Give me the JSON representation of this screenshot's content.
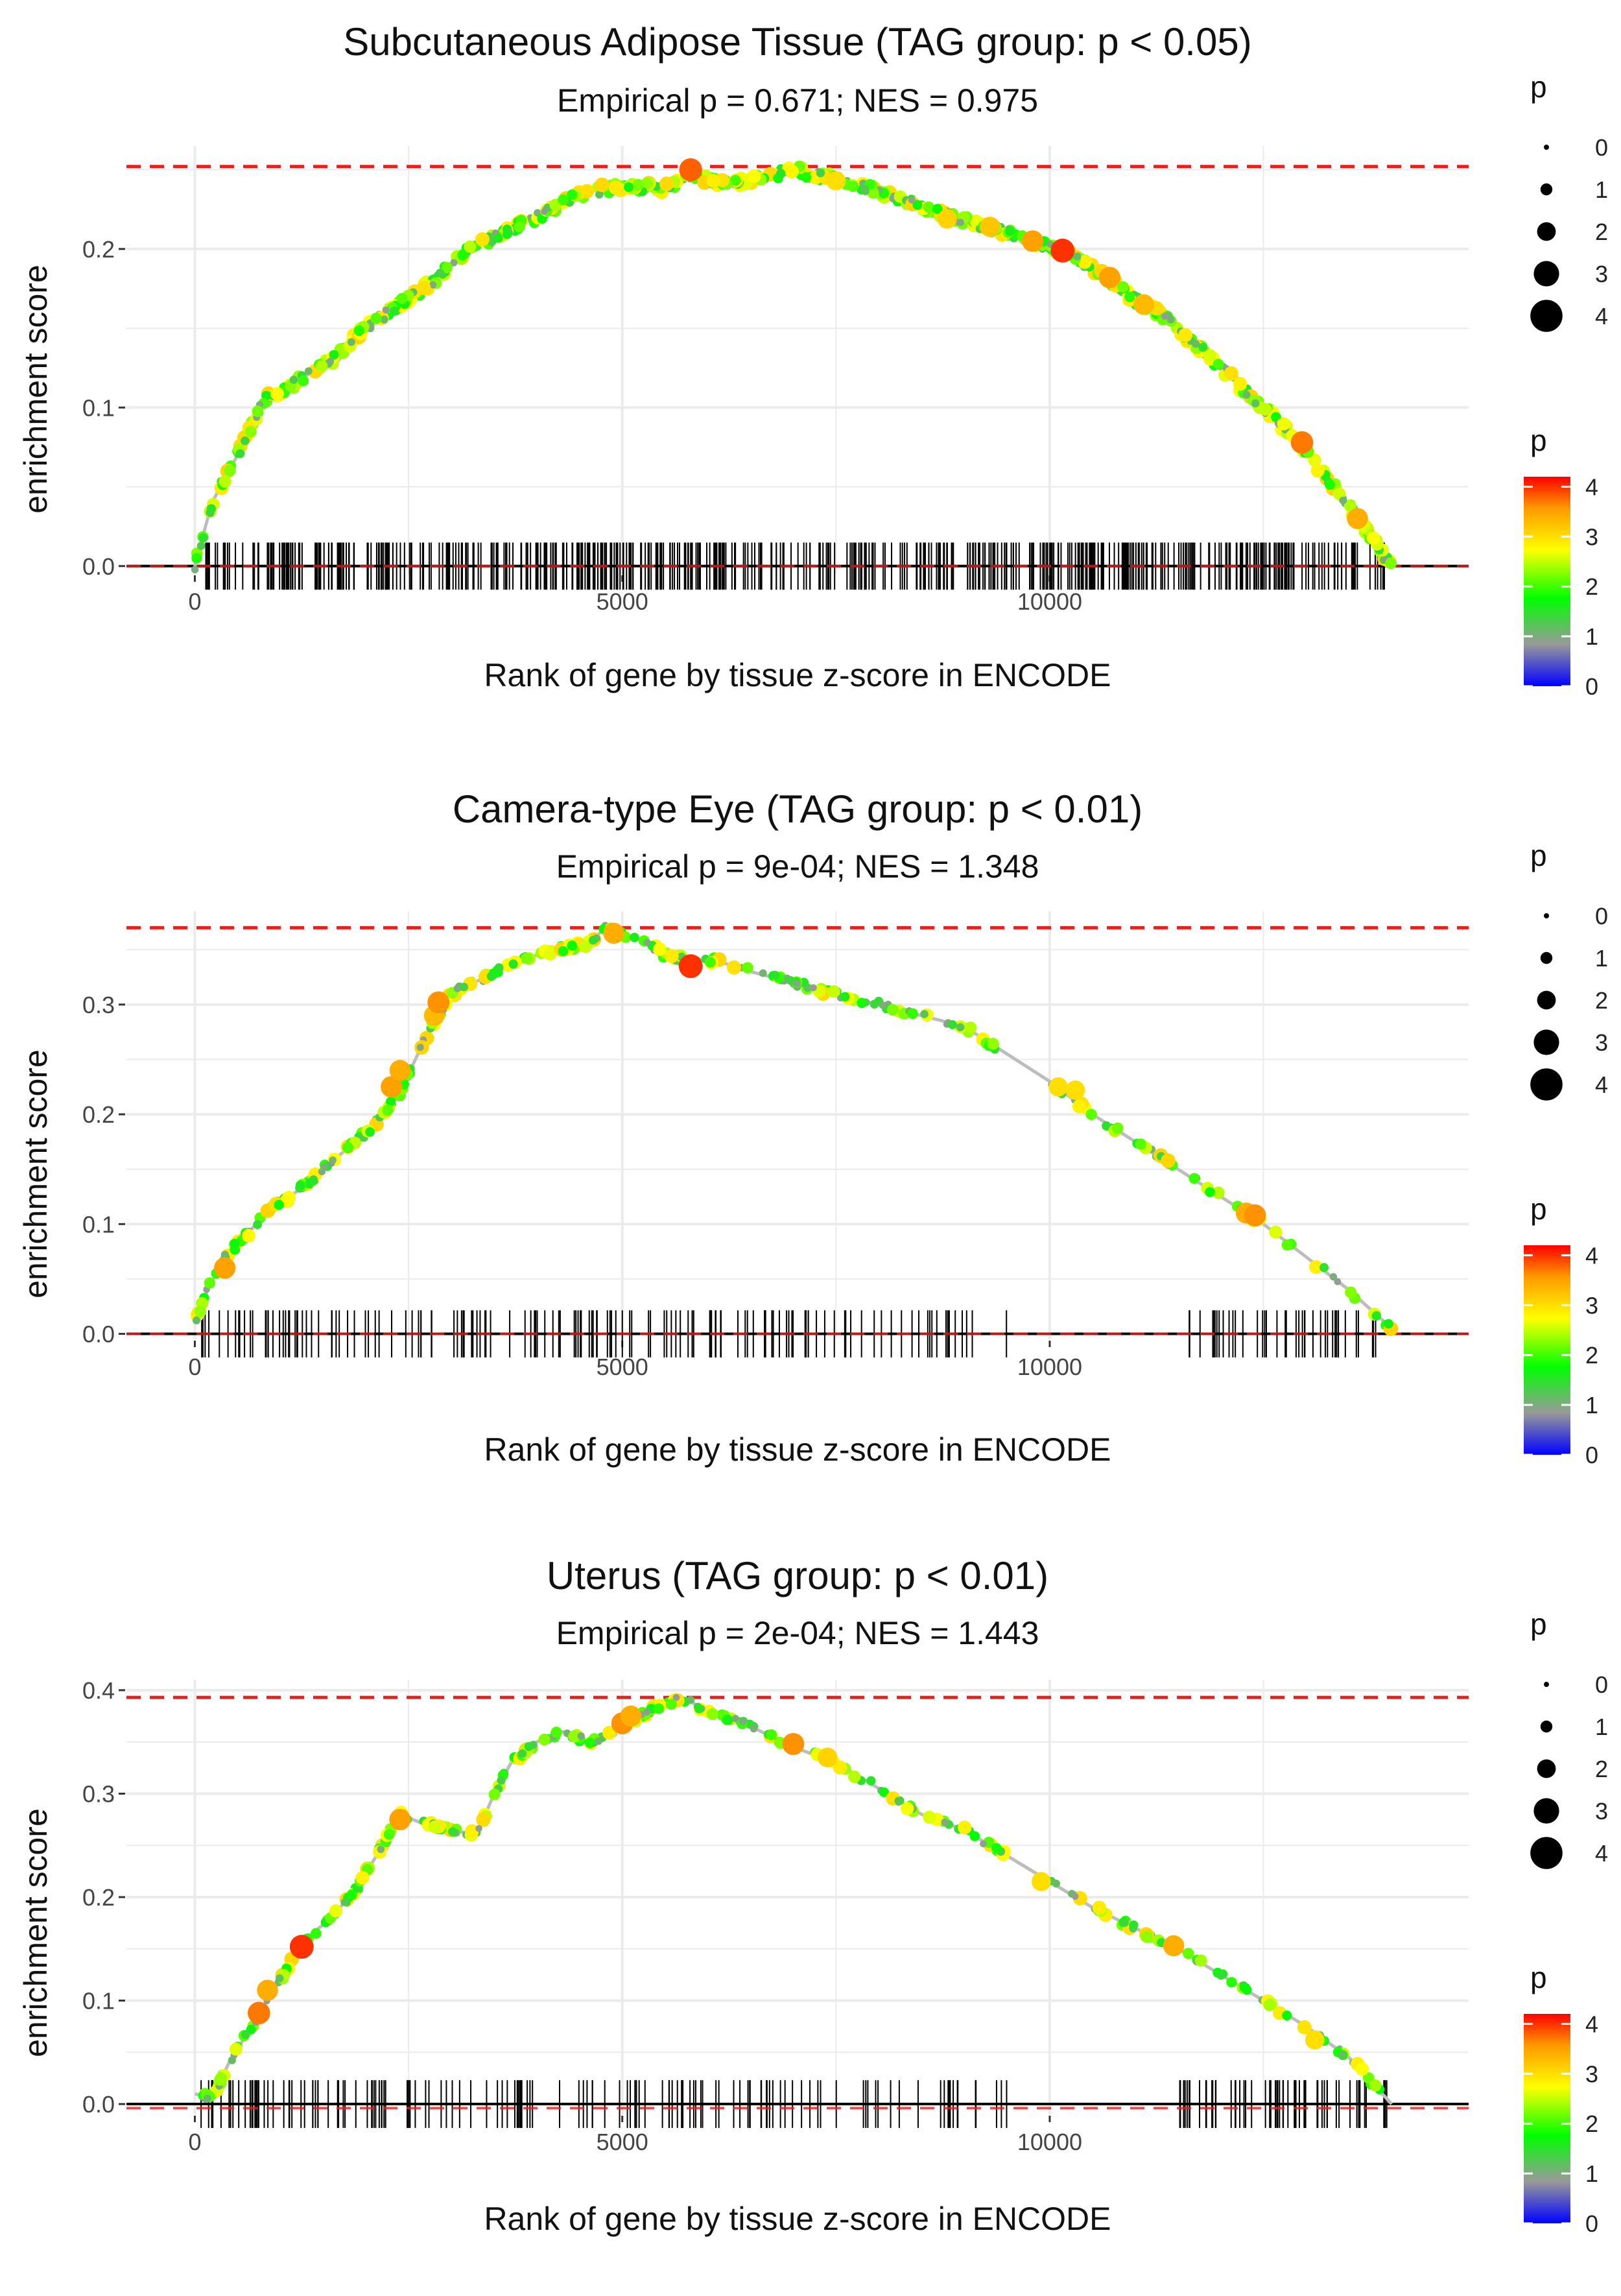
{
  "chart_data": [
    {
      "type": "line",
      "title": "Subcutaneous Adipose Tissue (TAG group: p < 0.05)",
      "subtitle": "Empirical p = 0.671; NES = 0.975",
      "xlabel": "Rank of gene by tissue z-score in ENCODE",
      "ylabel": "enrichment score",
      "xlim": [
        -800,
        14900
      ],
      "ylim": [
        -0.005,
        0.265
      ],
      "x_ticks": [
        0,
        5000,
        10000
      ],
      "x_tick_labels": [
        "0",
        "5000",
        "10000"
      ],
      "y_ticks": [
        0.0,
        0.1,
        0.2
      ],
      "y_tick_labels": [
        "0.0",
        "0.1",
        "0.2"
      ],
      "max_es_line": 0.252,
      "min_es_line": 0.0,
      "curve": {
        "x": [
          0,
          200,
          400,
          600,
          800,
          1000,
          1300,
          1600,
          2000,
          2400,
          2800,
          3200,
          3600,
          4000,
          4500,
          5000,
          5500,
          5800,
          6200,
          6600,
          7000,
          7400,
          7800,
          8200,
          8600,
          9000,
          9400,
          9800,
          10200,
          10600,
          11000,
          11400,
          11800,
          12200,
          12600,
          13000,
          13400,
          13800,
          14000
        ],
        "y": [
          0.0,
          0.04,
          0.06,
          0.08,
          0.105,
          0.11,
          0.12,
          0.13,
          0.15,
          0.165,
          0.18,
          0.2,
          0.21,
          0.22,
          0.235,
          0.24,
          0.238,
          0.245,
          0.242,
          0.244,
          0.25,
          0.245,
          0.24,
          0.232,
          0.225,
          0.218,
          0.212,
          0.205,
          0.198,
          0.185,
          0.168,
          0.155,
          0.135,
          0.115,
          0.095,
          0.072,
          0.045,
          0.015,
          0.0
        ]
      },
      "highlighted_points": [
        {
          "x": 5800,
          "y": 0.25,
          "p": 3.8
        },
        {
          "x": 7500,
          "y": 0.243,
          "p": 3.0
        },
        {
          "x": 8800,
          "y": 0.219,
          "p": 3.1
        },
        {
          "x": 9300,
          "y": 0.214,
          "p": 3.2
        },
        {
          "x": 9800,
          "y": 0.205,
          "p": 3.5
        },
        {
          "x": 10150,
          "y": 0.199,
          "p": 4.0
        },
        {
          "x": 10700,
          "y": 0.182,
          "p": 3.5
        },
        {
          "x": 11100,
          "y": 0.165,
          "p": 3.3
        },
        {
          "x": 12950,
          "y": 0.078,
          "p": 3.7
        },
        {
          "x": 13600,
          "y": 0.03,
          "p": 3.4
        }
      ],
      "gene_ticks": {
        "density": "dense",
        "start": 50,
        "end": 13950,
        "count": 520
      },
      "legend_size": {
        "title": "p",
        "levels": [
          "0",
          "1",
          "2",
          "3",
          "4"
        ]
      },
      "legend_color": {
        "title": "p",
        "labels": [
          "4",
          "3",
          "2",
          "1",
          "0"
        ],
        "range": [
          0,
          4.2
        ]
      }
    },
    {
      "type": "line",
      "title": "Camera-type Eye (TAG group: p < 0.01)",
      "subtitle": "Empirical p = 9e-04; NES = 1.348",
      "xlabel": "Rank of gene by tissue z-score in ENCODE",
      "ylabel": "enrichment score",
      "xlim": [
        -800,
        14900
      ],
      "ylim": [
        -0.005,
        0.385
      ],
      "x_ticks": [
        0,
        5000,
        10000
      ],
      "x_tick_labels": [
        "0",
        "5000",
        "10000"
      ],
      "y_ticks": [
        0.0,
        0.1,
        0.2,
        0.3
      ],
      "y_tick_labels": [
        "0.0",
        "0.1",
        "0.2",
        "0.3"
      ],
      "max_es_line": 0.37,
      "min_es_line": 0.0,
      "curve": {
        "x": [
          0,
          150,
          350,
          600,
          900,
          1200,
          1500,
          1800,
          2100,
          2400,
          2700,
          3000,
          3400,
          3800,
          4200,
          4600,
          4800,
          5200,
          5500,
          5800,
          6100,
          6500,
          7000,
          7500,
          8000,
          8500,
          9000,
          9500,
          10000,
          10500,
          11000,
          11500,
          12000,
          12500,
          13000,
          13500,
          14000
        ],
        "y": [
          0.01,
          0.04,
          0.07,
          0.09,
          0.115,
          0.13,
          0.15,
          0.17,
          0.19,
          0.22,
          0.27,
          0.31,
          0.325,
          0.34,
          0.35,
          0.355,
          0.37,
          0.36,
          0.345,
          0.34,
          0.34,
          0.33,
          0.32,
          0.31,
          0.3,
          0.29,
          0.28,
          0.255,
          0.23,
          0.2,
          0.175,
          0.15,
          0.125,
          0.1,
          0.07,
          0.04,
          0.005
        ]
      },
      "highlighted_points": [
        {
          "x": 350,
          "y": 0.06,
          "p": 3.5
        },
        {
          "x": 2300,
          "y": 0.225,
          "p": 3.5
        },
        {
          "x": 2400,
          "y": 0.24,
          "p": 3.4
        },
        {
          "x": 2800,
          "y": 0.29,
          "p": 3.3
        },
        {
          "x": 2850,
          "y": 0.302,
          "p": 3.6
        },
        {
          "x": 4900,
          "y": 0.365,
          "p": 3.4
        },
        {
          "x": 5800,
          "y": 0.335,
          "p": 4.0
        },
        {
          "x": 10100,
          "y": 0.225,
          "p": 3.0
        },
        {
          "x": 10300,
          "y": 0.222,
          "p": 3.0
        },
        {
          "x": 12300,
          "y": 0.11,
          "p": 3.4
        },
        {
          "x": 12400,
          "y": 0.108,
          "p": 3.6
        }
      ],
      "gene_ticks": {
        "density": "sparse",
        "start": 50,
        "end": 13950,
        "count": 190
      },
      "legend_size": {
        "title": "p",
        "levels": [
          "0",
          "1",
          "2",
          "3",
          "4"
        ]
      },
      "legend_color": {
        "title": "p",
        "labels": [
          "4",
          "3",
          "2",
          "1",
          "0"
        ],
        "range": [
          0,
          4.2
        ]
      }
    },
    {
      "type": "line",
      "title": "Uterus (TAG group: p < 0.01)",
      "subtitle": "Empirical p = 2e-04; NES = 1.443",
      "xlabel": "Rank of gene by tissue z-score in ENCODE",
      "ylabel": "enrichment score",
      "xlim": [
        -800,
        14900
      ],
      "ylim": [
        -0.01,
        0.41
      ],
      "x_ticks": [
        0,
        5000,
        10000
      ],
      "x_tick_labels": [
        "0",
        "5000",
        "10000"
      ],
      "y_ticks": [
        0.0,
        0.1,
        0.2,
        0.3,
        0.4
      ],
      "y_tick_labels": [
        "0.0",
        "0.1",
        "0.2",
        "0.3",
        "0.4"
      ],
      "max_es_line": 0.393,
      "min_es_line": -0.004,
      "curve": {
        "x": [
          0,
          200,
          400,
          700,
          1000,
          1300,
          1600,
          1900,
          2200,
          2400,
          2700,
          3000,
          3300,
          3500,
          3700,
          4000,
          4300,
          4600,
          4800,
          5000,
          5300,
          5700,
          6000,
          6500,
          7000,
          7500,
          8000,
          8500,
          9000,
          9500,
          10000,
          10500,
          11000,
          11500,
          12000,
          12500,
          13000,
          13500,
          14000
        ],
        "y": [
          0.01,
          0.005,
          0.04,
          0.08,
          0.12,
          0.16,
          0.18,
          0.21,
          0.25,
          0.28,
          0.27,
          0.265,
          0.26,
          0.3,
          0.33,
          0.35,
          0.36,
          0.35,
          0.355,
          0.365,
          0.38,
          0.393,
          0.38,
          0.365,
          0.345,
          0.33,
          0.305,
          0.28,
          0.265,
          0.24,
          0.215,
          0.19,
          0.17,
          0.15,
          0.125,
          0.1,
          0.075,
          0.045,
          0.0
        ]
      },
      "highlighted_points": [
        {
          "x": 750,
          "y": 0.088,
          "p": 3.7
        },
        {
          "x": 850,
          "y": 0.11,
          "p": 3.4
        },
        {
          "x": 1250,
          "y": 0.152,
          "p": 4.0
        },
        {
          "x": 2400,
          "y": 0.275,
          "p": 3.5
        },
        {
          "x": 5000,
          "y": 0.368,
          "p": 3.6
        },
        {
          "x": 5100,
          "y": 0.375,
          "p": 3.4
        },
        {
          "x": 7000,
          "y": 0.348,
          "p": 3.6
        },
        {
          "x": 7400,
          "y": 0.335,
          "p": 3.1
        },
        {
          "x": 9900,
          "y": 0.215,
          "p": 3.0
        },
        {
          "x": 11450,
          "y": 0.153,
          "p": 3.4
        },
        {
          "x": 13100,
          "y": 0.062,
          "p": 3.0
        }
      ],
      "gene_ticks": {
        "density": "sparse",
        "start": 50,
        "end": 13950,
        "count": 200
      },
      "legend_size": {
        "title": "p",
        "levels": [
          "0",
          "1",
          "2",
          "3",
          "4"
        ]
      },
      "legend_color": {
        "title": "p",
        "labels": [
          "4",
          "3",
          "2",
          "1",
          "0"
        ],
        "range": [
          0,
          4.2
        ]
      }
    }
  ],
  "colors": {
    "max_line": "#e8201c",
    "grid": "#ebebeb",
    "curve": "#bdbdbd",
    "zero_line": "#000000",
    "gene_tick": "#000000",
    "gradient": [
      "#0000ff",
      "#999999",
      "#00ff00",
      "#ffff00",
      "#ff9900",
      "#ff0000"
    ]
  }
}
